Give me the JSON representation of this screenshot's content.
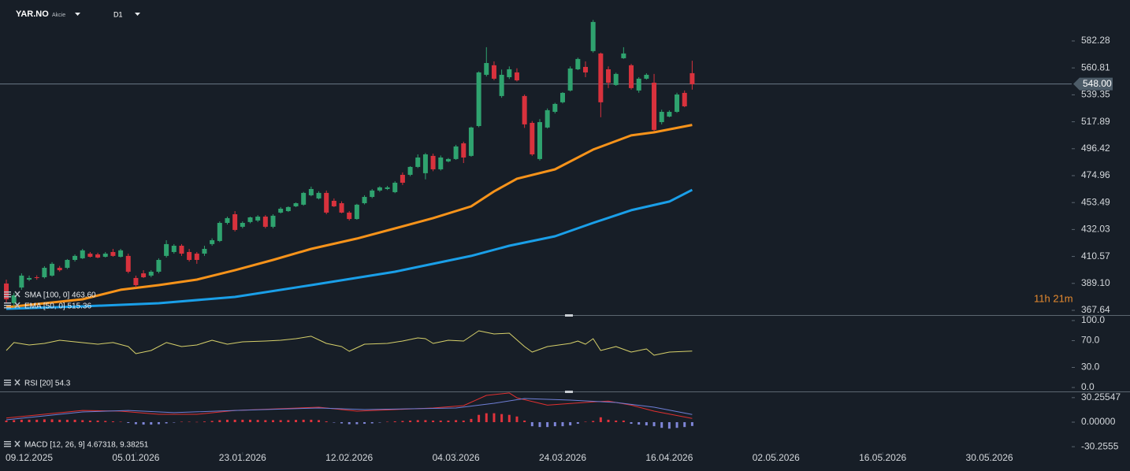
{
  "chart_data": [
    {
      "type": "candlestick",
      "symbol": "YAR.NO",
      "instrument_type": "Akcie",
      "timeframe": "D1",
      "countdown": "11h 21m",
      "last_price": {
        "value": 548.0,
        "label": "548.00"
      },
      "up_color": "#2fa36f",
      "down_color": "#d8323d",
      "open": [
        389.0,
        373.3,
        385.8,
        392.1,
        394.0,
        394.0,
        395.3,
        401.5,
        401.5,
        407.8,
        409.1,
        412.8,
        412.2,
        410.3,
        414.1,
        410.3,
        411.0,
        393.4,
        397.1,
        395.3,
        398.4,
        411.0,
        414.1,
        419.1,
        414.1,
        412.8,
        412.8,
        420.4,
        422.9,
        437.3,
        444.2,
        434.2,
        438.0,
        439.2,
        442.3,
        434.2,
        445.5,
        446.7,
        450.5,
        451.8,
        459.3,
        456.8,
        461.2,
        454.9,
        453.0,
        445.5,
        440.4,
        453.0,
        458.0,
        463.1,
        464.3,
        461.8,
        475.6,
        475.6,
        481.9,
        476.9,
        490.7,
        480.0,
        486.3,
        488.2,
        500.7,
        490.7,
        514.5,
        555.3,
        562.9,
        538.4,
        553.4,
        557.2,
        538.4,
        517.0,
        488.2,
        513.3,
        525.8,
        533.4,
        542.8,
        559.7,
        561.6,
        574.2,
        572.3,
        559.7,
        547.2,
        568.5,
        562.9,
        542.8,
        552.2,
        549.0,
        517.6,
        522.0,
        525.8,
        540.9,
        556.6
      ],
      "high": [
        392.1,
        381.5,
        397.1,
        395.3,
        395.5,
        402.8,
        406.0,
        403.0,
        408.5,
        412.2,
        416.6,
        414.1,
        413.5,
        414.1,
        416.6,
        416.6,
        412.8,
        395.3,
        399.6,
        399.6,
        409.1,
        423.5,
        420.4,
        420.4,
        416.6,
        414.1,
        419.1,
        425.0,
        438.5,
        442.3,
        446.7,
        438.5,
        442.3,
        443.5,
        443.5,
        444.2,
        449.9,
        450.5,
        453.6,
        462.0,
        466.2,
        462.5,
        463.1,
        456.8,
        454.5,
        446.7,
        452.5,
        459.3,
        464.3,
        466.5,
        466.8,
        470.5,
        477.5,
        482.5,
        491.9,
        493.0,
        492.5,
        491.0,
        489.0,
        499.5,
        502.0,
        514.0,
        558.0,
        577.3,
        566.0,
        559.5,
        562.0,
        560.5,
        539.6,
        518.5,
        520.0,
        528.5,
        533.0,
        541.5,
        562.0,
        569.0,
        566.0,
        599.0,
        573.0,
        562.0,
        557.0,
        577.3,
        564.0,
        553.4,
        556.5,
        556.0,
        527.5,
        527.0,
        541.0,
        542.8,
        566.5
      ],
      "low": [
        373.3,
        370.5,
        384.0,
        391.0,
        392.0,
        393.0,
        394.5,
        398.5,
        400.5,
        406.5,
        408.5,
        409.7,
        409.1,
        409.7,
        410.3,
        409.7,
        397.1,
        385.8,
        393.4,
        394.0,
        397.1,
        409.7,
        412.8,
        411.0,
        406.5,
        404.7,
        411.0,
        419.1,
        422.0,
        436.0,
        430.5,
        433.0,
        437.0,
        438.0,
        433.0,
        433.0,
        444.8,
        446.0,
        449.9,
        451.0,
        458.5,
        456.0,
        444.2,
        449.9,
        445.0,
        439.2,
        439.8,
        452.0,
        457.0,
        462.0,
        463.5,
        461.0,
        467.5,
        474.5,
        481.0,
        472.0,
        478.5,
        479.0,
        485.5,
        487.5,
        485.0,
        490.0,
        513.5,
        554.0,
        551.0,
        537.0,
        552.0,
        550.0,
        513.0,
        490.7,
        487.0,
        512.5,
        524.5,
        532.5,
        542.0,
        559.0,
        553.4,
        573.0,
        521.5,
        544.7,
        546.5,
        568.0,
        543.5,
        541.0,
        551.5,
        510.5,
        515.8,
        521.5,
        525.0,
        529.5,
        543.5
      ],
      "close": [
        376.4,
        379.6,
        395.3,
        393.4,
        393.4,
        401.5,
        404.7,
        399.6,
        407.8,
        411.0,
        415.4,
        410.3,
        409.7,
        412.8,
        411.0,
        415.4,
        398.4,
        387.7,
        394.0,
        398.4,
        407.8,
        420.4,
        419.1,
        412.8,
        407.8,
        407.8,
        416.6,
        423.5,
        437.3,
        441.1,
        431.7,
        437.3,
        441.7,
        442.3,
        434.2,
        443.0,
        448.6,
        449.9,
        453.0,
        461.2,
        464.3,
        461.2,
        445.5,
        450.5,
        445.5,
        440.4,
        451.8,
        458.0,
        463.1,
        465.6,
        465.6,
        469.3,
        469.3,
        481.9,
        489.4,
        491.9,
        480.0,
        489.4,
        488.2,
        498.2,
        489.4,
        513.3,
        557.2,
        564.7,
        552.2,
        555.3,
        559.7,
        550.9,
        515.8,
        491.9,
        517.6,
        527.1,
        532.1,
        540.9,
        560.3,
        567.9,
        557.2,
        597.4,
        533.4,
        549.0,
        556.0,
        572.3,
        544.7,
        552.2,
        555.3,
        511.4,
        525.8,
        525.8,
        539.6,
        530.2,
        547.8
      ],
      "series": [
        {
          "name": "SMA [100, 0] 463.60",
          "color": "#1a9fe8",
          "x": [
            0,
            10,
            20,
            30,
            40,
            51,
            61,
            66,
            72,
            77,
            82,
            87,
            90
          ],
          "values": [
            368.9,
            370.8,
            373.3,
            378.3,
            387.7,
            398.4,
            411.0,
            419.1,
            426.6,
            437.3,
            447.4,
            454.3,
            463.6
          ]
        },
        {
          "name": "EMA [50, 0] 515.36",
          "color": "#f7931a",
          "x": [
            0,
            10,
            15,
            20,
            25,
            30,
            35,
            40,
            46,
            51,
            56,
            61,
            64,
            67,
            72,
            77,
            82,
            85,
            90
          ],
          "values": [
            370.1,
            376.4,
            384.0,
            387.7,
            392.1,
            399.6,
            407.8,
            416.6,
            424.8,
            432.9,
            441.1,
            450.5,
            462.4,
            472.5,
            480.0,
            495.7,
            507.0,
            509.5,
            515.4
          ]
        }
      ],
      "xlim": [
        -0.83,
        139.8
      ],
      "xticks": [
        {
          "value": 3,
          "label": "09.12.2025"
        },
        {
          "value": 17,
          "label": "05.01.2026"
        },
        {
          "value": 31,
          "label": "23.01.2026"
        },
        {
          "value": 45,
          "label": "12.02.2026"
        },
        {
          "value": 59,
          "label": "04.03.2026"
        },
        {
          "value": 73,
          "label": "24.03.2026"
        },
        {
          "value": 87,
          "label": "16.04.2026"
        },
        {
          "value": 101,
          "label": "02.05.2026"
        },
        {
          "value": 115,
          "label": "16.05.2026"
        },
        {
          "value": 129,
          "label": "30.05.2026"
        }
      ],
      "ylim": [
        363.87,
        614.91
      ],
      "yticks": [
        367.64,
        {
          "value": 389.1,
          "label": "389.10"
        },
        410.57,
        432.03,
        453.49,
        474.96,
        496.42,
        517.89,
        539.35,
        560.81,
        582.28
      ]
    },
    {
      "type": "line",
      "series": [
        {
          "name": "RSI [20] 54.3",
          "color": "#d6d06a",
          "x": [
            0,
            1,
            3,
            5,
            7,
            9,
            12,
            14,
            16,
            17,
            19,
            21,
            23,
            25,
            27,
            29,
            31,
            34,
            36,
            38,
            40,
            42,
            44,
            45,
            47,
            50,
            52,
            54,
            55,
            56,
            58,
            60,
            62,
            64,
            66,
            68,
            69,
            71,
            74,
            75,
            76,
            77,
            78,
            80,
            82,
            84,
            85,
            87,
            90
          ],
          "values": [
            55.3,
            67.1,
            63.5,
            65.9,
            70.6,
            68.2,
            64.7,
            67.1,
            61.2,
            50.6,
            55.3,
            67.1,
            61.2,
            63.5,
            70.6,
            64.7,
            68.2,
            69.4,
            70.6,
            72.9,
            76.5,
            65.9,
            61.2,
            54.1,
            64.7,
            65.9,
            69.4,
            74.1,
            72.9,
            65.9,
            70.6,
            69.4,
            84.7,
            80.0,
            81.2,
            61.2,
            52.9,
            61.2,
            65.9,
            69.4,
            64.7,
            72.9,
            55.3,
            61.2,
            52.9,
            57.6,
            48.2,
            52.9,
            54.3
          ]
        }
      ],
      "xlim": [
        -0.83,
        139.8
      ],
      "ylim": [
        -5.9,
        108.2
      ],
      "yticks": [
        {
          "value": 100,
          "label": "100.0"
        },
        {
          "value": 70,
          "label": "70.0"
        },
        {
          "value": 30,
          "label": "30.0"
        },
        {
          "value": 0,
          "label": "0.0"
        }
      ]
    },
    {
      "type": "macd",
      "name": "MACD [12, 26, 9] 4.67318, 9.38251",
      "histogram": {
        "up_color": "#e0333c",
        "down_color": "#7f86d8",
        "values": [
          2,
          2.5,
          3,
          3,
          3,
          3.5,
          3.5,
          3,
          3,
          3,
          2.5,
          2,
          2,
          1.5,
          1,
          0.5,
          -1,
          -2.5,
          -3,
          -3,
          -2.5,
          -1.5,
          -0.5,
          0.5,
          0.5,
          0.3,
          0.8,
          1.5,
          2.5,
          3,
          3,
          3,
          3,
          2.8,
          2.5,
          2.5,
          2.5,
          2.5,
          2.8,
          3,
          3,
          2.5,
          1,
          -0.5,
          -1.5,
          -2.5,
          -2.5,
          -2,
          -1.5,
          -0.5,
          0.5,
          1,
          1.5,
          2,
          2.5,
          2.5,
          2,
          2,
          2,
          2.5,
          2,
          4,
          9,
          11,
          11,
          10,
          9,
          7,
          2,
          -5,
          -6,
          -6,
          -5,
          -5,
          -4,
          -2,
          0.5,
          1.5,
          6,
          3,
          2,
          2,
          -2,
          -3,
          -4,
          -5,
          -7,
          -8,
          -7,
          -6,
          -4.7
        ]
      },
      "series": [
        {
          "color": "#e03030",
          "x": [
            0,
            10,
            15,
            20,
            25,
            30,
            41,
            46,
            51,
            56,
            60,
            63,
            66,
            67,
            71,
            74,
            77,
            79,
            82,
            85,
            90
          ],
          "values": [
            5,
            14.5,
            13.6,
            9.7,
            9.7,
            14.5,
            18.4,
            13.6,
            15.5,
            17.5,
            20.4,
            33,
            36,
            30,
            21,
            23,
            25,
            26,
            21,
            13.6,
            4.67318
          ]
        },
        {
          "color": "#6f7fd6",
          "x": [
            0,
            10,
            16,
            22,
            30,
            41,
            47,
            53,
            59,
            64,
            68,
            74,
            80,
            85,
            90
          ],
          "values": [
            2.9,
            12.6,
            14.5,
            11.7,
            14.5,
            17.5,
            15.5,
            16.5,
            17.5,
            23.3,
            29.1,
            27.2,
            24.3,
            18.4,
            9.38251
          ]
        }
      ],
      "xlim": [
        -0.83,
        139.8
      ],
      "ylim": [
        -40.8,
        36.9
      ],
      "yticks": [
        30.25547,
        {
          "value": 0,
          "label": "0.00000"
        },
        -30.2555
      ]
    }
  ]
}
